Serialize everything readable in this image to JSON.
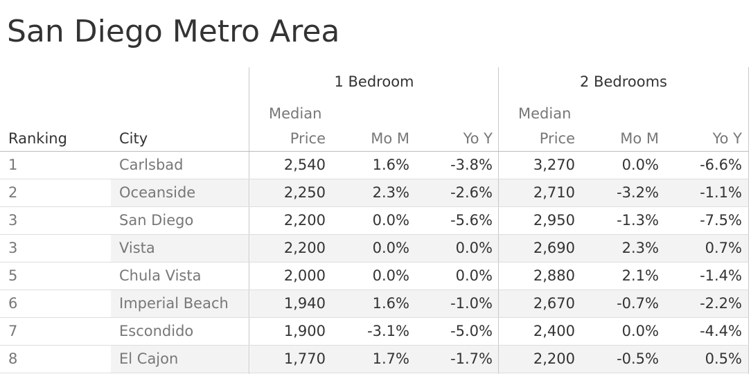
{
  "title": "San Diego Metro Area",
  "chart_data": {
    "type": "table",
    "title": "San Diego Metro Area",
    "column_groups": [
      "1 Bedroom",
      "2 Bedrooms"
    ],
    "columns": [
      "Ranking",
      "City",
      "Median Price",
      "Mo M",
      "Yo Y",
      "Median Price",
      "Mo M",
      "Yo Y"
    ],
    "header": {
      "ranking": "Ranking",
      "city": "City",
      "median_line1": "Median",
      "median_line2": "Price",
      "mom": "Mo M",
      "yoy": "Yo Y"
    },
    "rows": [
      {
        "rank": "1",
        "city": "Carlsbad",
        "b1_price": "2,540",
        "b1_mom": "1.6%",
        "b1_yoy": "-3.8%",
        "b2_price": "3,270",
        "b2_mom": "0.0%",
        "b2_yoy": "-6.6%"
      },
      {
        "rank": "2",
        "city": "Oceanside",
        "b1_price": "2,250",
        "b1_mom": "2.3%",
        "b1_yoy": "-2.6%",
        "b2_price": "2,710",
        "b2_mom": "-3.2%",
        "b2_yoy": "-1.1%"
      },
      {
        "rank": "3",
        "city": "San Diego",
        "b1_price": "2,200",
        "b1_mom": "0.0%",
        "b1_yoy": "-5.6%",
        "b2_price": "2,950",
        "b2_mom": "-1.3%",
        "b2_yoy": "-7.5%"
      },
      {
        "rank": "3",
        "city": "Vista",
        "b1_price": "2,200",
        "b1_mom": "0.0%",
        "b1_yoy": "0.0%",
        "b2_price": "2,690",
        "b2_mom": "2.3%",
        "b2_yoy": "0.7%"
      },
      {
        "rank": "5",
        "city": "Chula Vista",
        "b1_price": "2,000",
        "b1_mom": "0.0%",
        "b1_yoy": "0.0%",
        "b2_price": "2,880",
        "b2_mom": "2.1%",
        "b2_yoy": "-1.4%"
      },
      {
        "rank": "6",
        "city": "Imperial Beach",
        "b1_price": "1,940",
        "b1_mom": "1.6%",
        "b1_yoy": "-1.0%",
        "b2_price": "2,670",
        "b2_mom": "-0.7%",
        "b2_yoy": "-2.2%"
      },
      {
        "rank": "7",
        "city": "Escondido",
        "b1_price": "1,900",
        "b1_mom": "-3.1%",
        "b1_yoy": "-5.0%",
        "b2_price": "2,400",
        "b2_mom": "0.0%",
        "b2_yoy": "-4.4%"
      },
      {
        "rank": "8",
        "city": "El Cajon",
        "b1_price": "1,770",
        "b1_mom": "1.7%",
        "b1_yoy": "-1.7%",
        "b2_price": "2,200",
        "b2_mom": "-0.5%",
        "b2_yoy": "0.5%"
      }
    ]
  }
}
